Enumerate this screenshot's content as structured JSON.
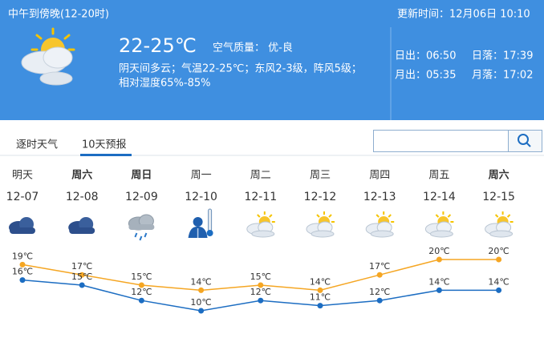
{
  "header": {
    "title": "中午到傍晚(12-20时)",
    "update_time": "更新时间：12月06日 10:10",
    "temperature": "22-25℃",
    "air_quality": "空气质量： 优-良",
    "description": "阴天间多云；气温22-25℃；东风2-3级，阵风5级；",
    "humidity": "相对湿度65%-85%",
    "sunrise": "日出：06:50",
    "sunset": "日落：17:39",
    "moonrise": "月出：05:35",
    "moonset": "月落：17:02"
  },
  "tabs": [
    "逐时天气",
    "10天预报"
  ],
  "chart_data": {
    "type": "line",
    "weekdays": [
      "明天",
      "周六",
      "周日",
      "周一",
      "周二",
      "周三",
      "周四",
      "周五",
      "周六"
    ],
    "categories": [
      "12-07",
      "12-08",
      "12-09",
      "12-10",
      "12-11",
      "12-12",
      "12-13",
      "12-14",
      "12-15"
    ],
    "series": [
      {
        "color": "#f5a623",
        "values": [
          19,
          17,
          15,
          14,
          15,
          14,
          17,
          20,
          20
        ],
        "value_labels": [
          "19℃",
          "17℃",
          "15℃",
          "14℃",
          "15℃",
          "14℃",
          "17℃",
          "20℃",
          "20℃"
        ]
      },
      {
        "color": "#1c6dc2",
        "values": [
          16,
          15,
          12,
          10,
          12,
          11,
          12,
          14,
          14
        ],
        "value_labels": [
          "16℃",
          "15℃",
          "12℃",
          "10℃",
          "12℃",
          "11℃",
          "12℃",
          "14℃",
          "14℃"
        ]
      }
    ]
  }
}
